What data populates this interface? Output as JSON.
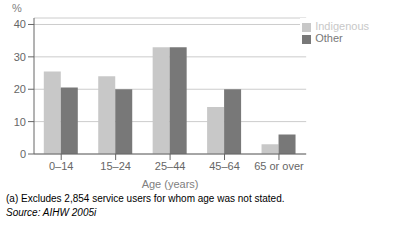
{
  "chart_data": {
    "type": "bar",
    "categories": [
      "0–14",
      "15–24",
      "25–44",
      "45–64",
      "65 or over"
    ],
    "series": [
      {
        "name": "Indigenous",
        "color": "#c8c8c8",
        "values": [
          25.5,
          24.0,
          33.0,
          14.5,
          3.0
        ]
      },
      {
        "name": "Other",
        "color": "#787878",
        "values": [
          20.5,
          20.0,
          33.0,
          20.0,
          6.0
        ]
      }
    ],
    "y_label": "%",
    "x_label": "Age (years)",
    "ylim": [
      0,
      42
    ],
    "yticks": [
      0,
      10,
      20,
      30,
      40
    ],
    "grid": true,
    "legend": "upper right",
    "annotations": [
      "(a) Excludes 2,854 service users for whom age was not stated.",
      "Source: AIHW 2005i"
    ]
  }
}
